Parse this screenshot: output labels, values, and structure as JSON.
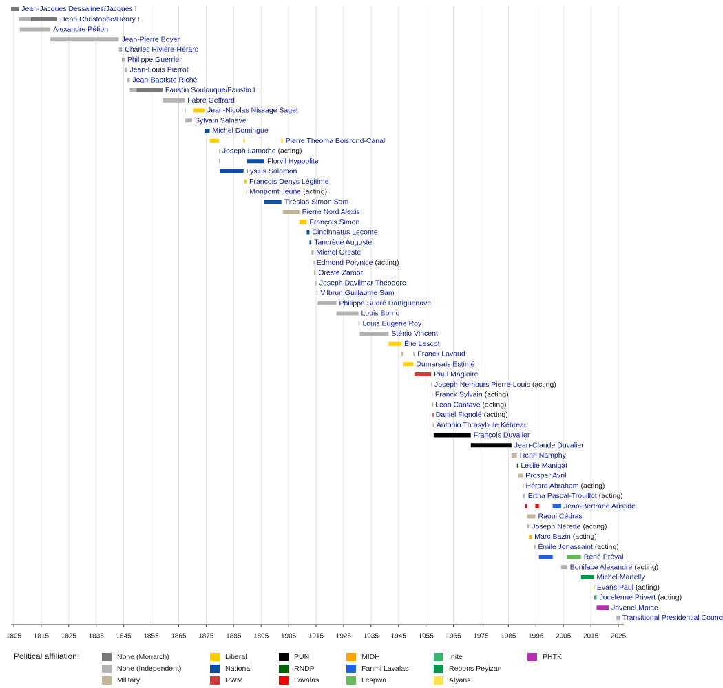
{
  "chart_data": {
    "type": "timeline",
    "legend_title": "Political affiliation:",
    "parties": [
      {
        "name": "None (Monarch)",
        "color": "#7a7a7a"
      },
      {
        "name": "None (Independent)",
        "color": "#b3b3b3"
      },
      {
        "name": "Military",
        "color": "#c4b49a"
      },
      {
        "name": "Liberal",
        "color": "#ffcc00"
      },
      {
        "name": "National",
        "color": "#0b4ea2"
      },
      {
        "name": "PWM",
        "color": "#d03b3b"
      },
      {
        "name": "PUN",
        "color": "#000000"
      },
      {
        "name": "RNDP",
        "color": "#006400"
      },
      {
        "name": "Lavalas",
        "color": "#ff0000"
      },
      {
        "name": "MIDH",
        "color": "#ffa500"
      },
      {
        "name": "Fanmi Lavalas",
        "color": "#1f5fe0"
      },
      {
        "name": "Lespwa",
        "color": "#66bb55"
      },
      {
        "name": "Inite",
        "color": "#3cb371"
      },
      {
        "name": "Repons Peyizan",
        "color": "#00994c"
      },
      {
        "name": "Alyans",
        "color": "#ffe14d"
      },
      {
        "name": "PHTK",
        "color": "#b92fb0"
      }
    ],
    "xlim": [
      1804,
      2027
    ],
    "xticks": [
      1805,
      1815,
      1825,
      1835,
      1845,
      1855,
      1865,
      1875,
      1885,
      1895,
      1905,
      1915,
      1925,
      1935,
      1945,
      1955,
      1965,
      1975,
      1985,
      1995,
      2005,
      2015,
      2025
    ],
    "grid": true,
    "rows": [
      {
        "name": "Jean-Jacques Dessalines/Jacques I",
        "terms": [
          {
            "start": 1804,
            "end": 1806.8,
            "party": "None (Monarch)"
          }
        ]
      },
      {
        "name": "Henri Christophe/Henry I",
        "terms": [
          {
            "start": 1807,
            "end": 1811.2,
            "party": "None (Independent)"
          },
          {
            "start": 1811.2,
            "end": 1820.8,
            "party": "None (Monarch)"
          }
        ]
      },
      {
        "name": "Alexandre Pétion",
        "terms": [
          {
            "start": 1807.2,
            "end": 1818.3,
            "party": "None (Independent)"
          }
        ]
      },
      {
        "name": "Jean-Pierre Boyer",
        "terms": [
          {
            "start": 1818.3,
            "end": 1843.2,
            "party": "None (Independent)"
          }
        ]
      },
      {
        "name": "Charles Rivière-Hérard",
        "terms": [
          {
            "start": 1843.3,
            "end": 1844.4,
            "party": "None (Independent)"
          }
        ]
      },
      {
        "name": "Philippe Guerrier",
        "terms": [
          {
            "start": 1844.3,
            "end": 1845.3,
            "party": "None (Independent)"
          }
        ]
      },
      {
        "name": "Jean-Louis Pierrot",
        "terms": [
          {
            "start": 1845.3,
            "end": 1846.2,
            "party": "None (Independent)"
          }
        ]
      },
      {
        "name": "Jean-Baptiste Riché",
        "terms": [
          {
            "start": 1846.2,
            "end": 1847.2,
            "party": "None (Independent)"
          }
        ]
      },
      {
        "name": "Faustin Soulouque/Faustin I",
        "terms": [
          {
            "start": 1847.2,
            "end": 1849.7,
            "party": "None (Independent)"
          },
          {
            "start": 1849.7,
            "end": 1859.1,
            "party": "None (Monarch)"
          }
        ]
      },
      {
        "name": "Fabre Geffrard",
        "terms": [
          {
            "start": 1859.1,
            "end": 1867.2,
            "party": "None (Independent)"
          }
        ]
      },
      {
        "name": "Jean-Nicolas Nissage Saget",
        "terms": [
          {
            "start": 1867.2,
            "end": 1867.4,
            "party": "None (Independent)"
          },
          {
            "start": 1870.3,
            "end": 1874.4,
            "party": "Liberal"
          }
        ]
      },
      {
        "name": "Sylvain Salnave",
        "terms": [
          {
            "start": 1867.4,
            "end": 1869.9,
            "party": "None (Independent)"
          }
        ]
      },
      {
        "name": "Michel Domingue",
        "terms": [
          {
            "start": 1874.4,
            "end": 1876.3,
            "party": "National"
          }
        ]
      },
      {
        "name": "Pierre Théoma Boisrond-Canal",
        "terms": [
          {
            "start": 1876.3,
            "end": 1879.7,
            "party": "Liberal"
          },
          {
            "start": 1888.6,
            "end": 1888.9,
            "party": "Liberal"
          },
          {
            "start": 1902.3,
            "end": 1902.9,
            "party": "Liberal"
          }
        ]
      },
      {
        "name": "Joseph Lamothe",
        "note": "(acting)",
        "terms": [
          {
            "start": 1879.7,
            "end": 1879.9,
            "party": "None (Independent)"
          }
        ]
      },
      {
        "name": "Florvil Hyppolite",
        "terms": [
          {
            "start": 1879.8,
            "end": 1880,
            "party": "National"
          },
          {
            "start": 1889.8,
            "end": 1896.2,
            "party": "National"
          }
        ]
      },
      {
        "name": "Lysius Salomon",
        "terms": [
          {
            "start": 1879.9,
            "end": 1888.6,
            "party": "National"
          }
        ]
      },
      {
        "name": "François Denys Légitime",
        "terms": [
          {
            "start": 1888.9,
            "end": 1889.7,
            "party": "Liberal"
          }
        ]
      },
      {
        "name": "Monpoint Jeune",
        "note": "(acting)",
        "terms": [
          {
            "start": 1889.6,
            "end": 1889.8,
            "party": "None (Independent)"
          }
        ]
      },
      {
        "name": "Tirésias Simon Sam",
        "terms": [
          {
            "start": 1896.2,
            "end": 1902.4,
            "party": "National"
          }
        ]
      },
      {
        "name": "Pierre Nord Alexis",
        "terms": [
          {
            "start": 1902.9,
            "end": 1908.9,
            "party": "Military"
          }
        ]
      },
      {
        "name": "François Simon",
        "terms": [
          {
            "start": 1908.9,
            "end": 1911.6,
            "party": "Liberal"
          }
        ]
      },
      {
        "name": "Cincinnatus Leconte",
        "terms": [
          {
            "start": 1911.6,
            "end": 1912.6,
            "party": "National"
          }
        ]
      },
      {
        "name": "Tancrède Auguste",
        "terms": [
          {
            "start": 1912.6,
            "end": 1913.3,
            "party": "National"
          }
        ]
      },
      {
        "name": "Michel Oreste",
        "terms": [
          {
            "start": 1913.3,
            "end": 1914.1,
            "party": "None (Independent)"
          }
        ]
      },
      {
        "name": "Edmond Polynice",
        "note": "(acting)",
        "terms": [
          {
            "start": 1914.1,
            "end": 1914.2,
            "party": "None (Independent)"
          }
        ]
      },
      {
        "name": "Oreste Zamor",
        "terms": [
          {
            "start": 1914.2,
            "end": 1914.8,
            "party": "Military"
          }
        ]
      },
      {
        "name": "Joseph Davilmar Théodore",
        "terms": [
          {
            "start": 1914.8,
            "end": 1915.2,
            "party": "None (Independent)"
          }
        ]
      },
      {
        "name": "Vilbrun Guillaume Sam",
        "terms": [
          {
            "start": 1915.2,
            "end": 1915.6,
            "party": "None (Independent)"
          }
        ]
      },
      {
        "name": "Philippe Sudré Dartiguenave",
        "terms": [
          {
            "start": 1915.6,
            "end": 1922.4,
            "party": "None (Independent)"
          }
        ]
      },
      {
        "name": "Louis Borno",
        "terms": [
          {
            "start": 1922.4,
            "end": 1930.4,
            "party": "None (Independent)"
          }
        ]
      },
      {
        "name": "Louis Eugène Roy",
        "terms": [
          {
            "start": 1930.4,
            "end": 1930.9,
            "party": "None (Independent)"
          }
        ]
      },
      {
        "name": "Sténio Vincent",
        "terms": [
          {
            "start": 1930.9,
            "end": 1941.4,
            "party": "None (Independent)"
          }
        ]
      },
      {
        "name": "Élie Lescot",
        "terms": [
          {
            "start": 1941.4,
            "end": 1946.1,
            "party": "Liberal"
          }
        ]
      },
      {
        "name": "Franck Lavaud",
        "terms": [
          {
            "start": 1946.1,
            "end": 1946.6,
            "party": "Military"
          },
          {
            "start": 1950.4,
            "end": 1950.9,
            "party": "None (Independent)"
          }
        ]
      },
      {
        "name": "Dumarsais Estimé",
        "terms": [
          {
            "start": 1946.6,
            "end": 1950.4,
            "party": "Liberal"
          }
        ]
      },
      {
        "name": "Paul Magloire",
        "terms": [
          {
            "start": 1950.9,
            "end": 1956.9,
            "party": "PWM"
          }
        ]
      },
      {
        "name": "Joseph Nemours Pierre-Louis",
        "note": "(acting)",
        "terms": [
          {
            "start": 1956.9,
            "end": 1957.1,
            "party": "None (Independent)"
          }
        ]
      },
      {
        "name": "Franck Sylvain",
        "note": "(acting)",
        "terms": [
          {
            "start": 1957.1,
            "end": 1957.3,
            "party": "None (Independent)"
          }
        ]
      },
      {
        "name": "Léon Cantave",
        "note": "(acting)",
        "terms": [
          {
            "start": 1957.3,
            "end": 1957.4,
            "party": "Military"
          }
        ]
      },
      {
        "name": "Daniel Fignolé",
        "note": "(acting)",
        "terms": [
          {
            "start": 1957.4,
            "end": 1957.5,
            "party": "PWM"
          }
        ]
      },
      {
        "name": "Antonio Thrasybule Kébreau",
        "terms": [
          {
            "start": 1957.5,
            "end": 1957.8,
            "party": "Military"
          }
        ]
      },
      {
        "name": "François Duvalier",
        "terms": [
          {
            "start": 1957.8,
            "end": 1971.3,
            "party": "PUN"
          }
        ]
      },
      {
        "name": "Jean-Claude Duvalier",
        "terms": [
          {
            "start": 1971.3,
            "end": 1986.1,
            "party": "PUN"
          }
        ]
      },
      {
        "name": "Henri Namphy",
        "terms": [
          {
            "start": 1986.1,
            "end": 1988.1,
            "party": "Military"
          }
        ]
      },
      {
        "name": "Leslie Manigat",
        "terms": [
          {
            "start": 1988.1,
            "end": 1988.5,
            "party": "RNDP"
          }
        ]
      },
      {
        "name": "Prosper Avril",
        "terms": [
          {
            "start": 1988.7,
            "end": 1990.2,
            "party": "Military"
          }
        ]
      },
      {
        "name": "Hérard Abraham",
        "note": "(acting)",
        "terms": [
          {
            "start": 1990.2,
            "end": 1990.3,
            "party": "Military"
          }
        ]
      },
      {
        "name": "Ertha Pascal-Trouillot",
        "note": "(acting)",
        "terms": [
          {
            "start": 1990.3,
            "end": 1991.1,
            "party": "None (Independent)"
          }
        ]
      },
      {
        "name": "Jean-Bertrand Aristide",
        "terms": [
          {
            "start": 1991.1,
            "end": 1991.8,
            "party": "Lavalas"
          },
          {
            "start": 1994.8,
            "end": 1996.1,
            "party": "Lavalas"
          },
          {
            "start": 2001.1,
            "end": 2004.2,
            "party": "Fanmi Lavalas"
          }
        ]
      },
      {
        "name": "Raoul Cédras",
        "terms": [
          {
            "start": 1991.8,
            "end": 1994.8,
            "party": "Military"
          }
        ]
      },
      {
        "name": "Joseph Nérette",
        "note": "(acting)",
        "terms": [
          {
            "start": 1991.8,
            "end": 1992.5,
            "party": "None (Independent)"
          }
        ]
      },
      {
        "name": "Marc Bazin",
        "note": "(acting)",
        "terms": [
          {
            "start": 1992.5,
            "end": 1993.5,
            "party": "MIDH"
          }
        ]
      },
      {
        "name": "Émile Jonassaint",
        "note": "(acting)",
        "terms": [
          {
            "start": 1994.4,
            "end": 1994.8,
            "party": "None (Independent)"
          }
        ]
      },
      {
        "name": "René Préval",
        "terms": [
          {
            "start": 1996.1,
            "end": 2001.1,
            "party": "Fanmi Lavalas"
          },
          {
            "start": 2006.4,
            "end": 2011.4,
            "party": "Lespwa"
          }
        ]
      },
      {
        "name": "Boniface Alexandre",
        "note": "(acting)",
        "terms": [
          {
            "start": 2004.2,
            "end": 2006.4,
            "party": "None (Independent)"
          }
        ]
      },
      {
        "name": "Michel Martelly",
        "terms": [
          {
            "start": 2011.4,
            "end": 2016.1,
            "party": "Repons Peyizan"
          }
        ]
      },
      {
        "name": "Evans Paul",
        "note": "(acting)",
        "terms": [
          {
            "start": 2016.1,
            "end": 2016.2,
            "party": "Alyans"
          }
        ]
      },
      {
        "name": "Jocelerme Privert",
        "note": "(acting)",
        "terms": [
          {
            "start": 2016.2,
            "end": 2017.1,
            "party": "Inite"
          }
        ]
      },
      {
        "name": "Jovenel Moïse",
        "terms": [
          {
            "start": 2017.1,
            "end": 2021.5,
            "party": "PHTK"
          }
        ]
      },
      {
        "name": "Transitional Presidential Council",
        "terms": [
          {
            "start": 2024.3,
            "end": 2025.5,
            "party": "None (Independent)"
          }
        ]
      }
    ]
  }
}
